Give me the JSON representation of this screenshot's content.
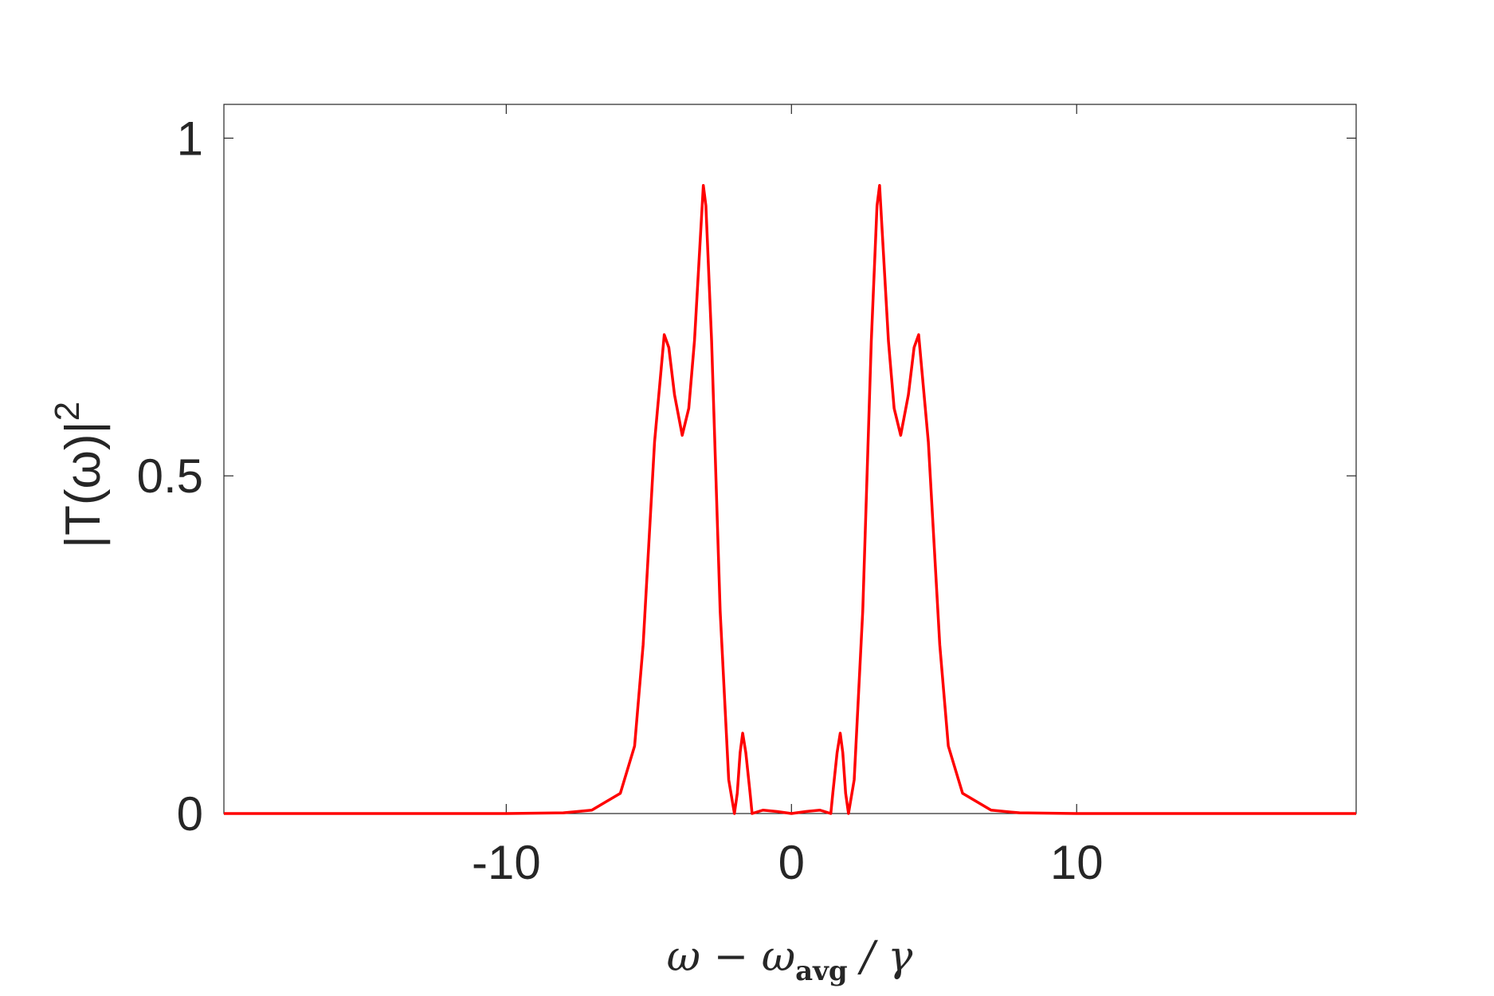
{
  "chart_data": {
    "type": "line",
    "xlabel": [
      "ω − ω",
      "avg",
      " / γ"
    ],
    "ylabel": [
      "|T(ω)|",
      "2"
    ],
    "xlim": [
      -19.9,
      19.8
    ],
    "ylim": [
      0,
      1.05
    ],
    "xticks": [
      -10,
      0,
      10
    ],
    "yticks": [
      0,
      0.5,
      1
    ],
    "series": [
      {
        "color": "#ff0000",
        "x": [
          -19.9,
          -10,
          -8,
          -7,
          -6,
          -5.5,
          -5.2,
          -5.0,
          -4.8,
          -4.46,
          -4.3,
          -4.1,
          -3.83,
          -3.6,
          -3.4,
          -3.09,
          -3.0,
          -2.8,
          -2.5,
          -2.2,
          -2.0,
          -1.9,
          -1.8,
          -1.71,
          -1.6,
          -1.45,
          -1.38,
          -1.0,
          -0.5,
          0,
          0.5,
          1.0,
          1.38,
          1.45,
          1.6,
          1.71,
          1.8,
          1.9,
          2.0,
          2.2,
          2.5,
          2.8,
          3.0,
          3.09,
          3.4,
          3.6,
          3.83,
          4.1,
          4.3,
          4.46,
          4.8,
          5.0,
          5.2,
          5.5,
          6,
          7,
          8,
          10,
          19.8
        ],
        "values": [
          0,
          0,
          0.001,
          0.005,
          0.03,
          0.1,
          0.25,
          0.4,
          0.55,
          0.709,
          0.69,
          0.62,
          0.56,
          0.6,
          0.7,
          0.93,
          0.9,
          0.7,
          0.3,
          0.05,
          0,
          0.03,
          0.09,
          0.119,
          0.09,
          0.03,
          0,
          0.005,
          0.003,
          0,
          0.003,
          0.005,
          0,
          0.03,
          0.09,
          0.119,
          0.09,
          0.03,
          0,
          0.05,
          0.3,
          0.7,
          0.9,
          0.93,
          0.7,
          0.6,
          0.56,
          0.62,
          0.69,
          0.709,
          0.55,
          0.4,
          0.25,
          0.1,
          0.03,
          0.005,
          0.001,
          0,
          0
        ]
      }
    ]
  }
}
